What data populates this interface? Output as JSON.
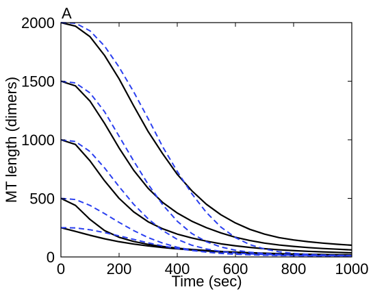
{
  "panel_label": "A",
  "chart_data": {
    "type": "line",
    "xlabel": "Time (sec)",
    "ylabel": "MT length (dimers)",
    "xlim": [
      0,
      1000
    ],
    "ylim": [
      0,
      2000
    ],
    "x_ticks": [
      0,
      200,
      400,
      600,
      800,
      1000
    ],
    "y_ticks": [
      0,
      500,
      1000,
      1500,
      2000
    ],
    "x_tick_labels": [
      "0",
      "200",
      "400",
      "600",
      "800",
      "1000"
    ],
    "y_tick_labels": [
      "0",
      "500",
      "1000",
      "1500",
      "2000"
    ],
    "grid": false,
    "legend": "none",
    "colors": {
      "solid": "#000000",
      "dashed": "#2a3ff0",
      "axes": "#000000"
    },
    "x": [
      0,
      50,
      100,
      150,
      200,
      250,
      300,
      350,
      400,
      450,
      500,
      550,
      600,
      650,
      700,
      750,
      800,
      850,
      900,
      950,
      1000
    ],
    "series": [
      {
        "style": "solid",
        "values": [
          2000,
          1970,
          1880,
          1720,
          1520,
          1290,
          1070,
          880,
          705,
          565,
          450,
          360,
          290,
          235,
          195,
          165,
          145,
          130,
          118,
          108,
          100
        ]
      },
      {
        "style": "solid",
        "values": [
          1500,
          1460,
          1330,
          1140,
          930,
          740,
          585,
          465,
          375,
          305,
          250,
          205,
          168,
          140,
          118,
          102,
          90,
          80,
          72,
          66,
          60
        ]
      },
      {
        "style": "solid",
        "values": [
          1000,
          960,
          820,
          650,
          500,
          385,
          300,
          240,
          195,
          162,
          135,
          112,
          95,
          81,
          70,
          61,
          54,
          48,
          43,
          39,
          35
        ]
      },
      {
        "style": "solid",
        "values": [
          500,
          440,
          320,
          225,
          168,
          132,
          107,
          89,
          75,
          64,
          55,
          47,
          41,
          36,
          32,
          28,
          25,
          23,
          21,
          19,
          18
        ]
      },
      {
        "style": "solid",
        "values": [
          250,
          218,
          185,
          155,
          130,
          110,
          94,
          80,
          69,
          59,
          51,
          44,
          38,
          33,
          29,
          25,
          22,
          20,
          18,
          16,
          15
        ]
      },
      {
        "style": "dashed",
        "values": [
          2000,
          1995,
          1930,
          1800,
          1620,
          1410,
          1180,
          940,
          730,
          540,
          380,
          255,
          165,
          105,
          68,
          44,
          30,
          22,
          17,
          14,
          12
        ]
      },
      {
        "style": "dashed",
        "values": [
          1500,
          1485,
          1400,
          1240,
          1030,
          820,
          620,
          445,
          305,
          200,
          130,
          85,
          57,
          40,
          29,
          22,
          18,
          15,
          13,
          12,
          11
        ]
      },
      {
        "style": "dashed",
        "values": [
          1000,
          985,
          900,
          760,
          600,
          450,
          325,
          225,
          150,
          100,
          68,
          47,
          34,
          26,
          21,
          17,
          15,
          13,
          12,
          11,
          10
        ]
      },
      {
        "style": "dashed",
        "values": [
          500,
          490,
          440,
          370,
          295,
          225,
          165,
          118,
          83,
          58,
          41,
          30,
          23,
          18,
          15,
          13,
          11,
          10,
          9,
          9,
          8
        ]
      },
      {
        "style": "dashed",
        "values": [
          250,
          248,
          232,
          208,
          180,
          150,
          120,
          94,
          72,
          55,
          42,
          32,
          25,
          20,
          16,
          13,
          11,
          10,
          9,
          8,
          7
        ]
      }
    ]
  }
}
